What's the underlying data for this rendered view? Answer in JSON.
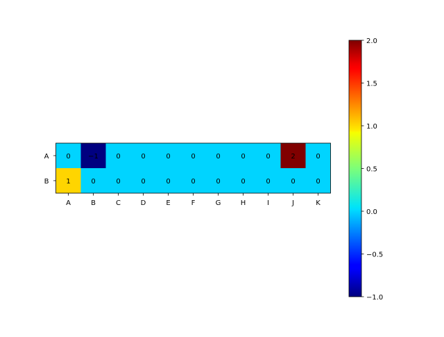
{
  "chart_data": {
    "type": "heatmap",
    "title": "",
    "xlabel": "",
    "ylabel": "",
    "x_categories": [
      "A",
      "B",
      "C",
      "D",
      "E",
      "F",
      "G",
      "H",
      "I",
      "J",
      "K"
    ],
    "y_categories": [
      "A",
      "B"
    ],
    "values": [
      [
        0,
        -1,
        0,
        0,
        0,
        0,
        0,
        0,
        0,
        2,
        0
      ],
      [
        1,
        0,
        0,
        0,
        0,
        0,
        0,
        0,
        0,
        0,
        0
      ]
    ],
    "cell_labels": [
      [
        "0",
        "-1",
        "0",
        "0",
        "0",
        "0",
        "0",
        "0",
        "0",
        "2",
        "0"
      ],
      [
        "1",
        "0",
        "0",
        "0",
        "0",
        "0",
        "0",
        "0",
        "0",
        "0",
        "0"
      ]
    ],
    "colormap": "jet",
    "colorbar": {
      "vmin": -1.0,
      "vmax": 2.0,
      "ticks": [
        -1.0,
        -0.5,
        0.0,
        0.5,
        1.0,
        1.5,
        2.0
      ],
      "tick_labels": [
        "−1.0",
        "−0.5",
        "0.0",
        "0.5",
        "1.0",
        "1.5",
        "2.0"
      ]
    },
    "grid": false,
    "legend": "colorbar-right"
  }
}
